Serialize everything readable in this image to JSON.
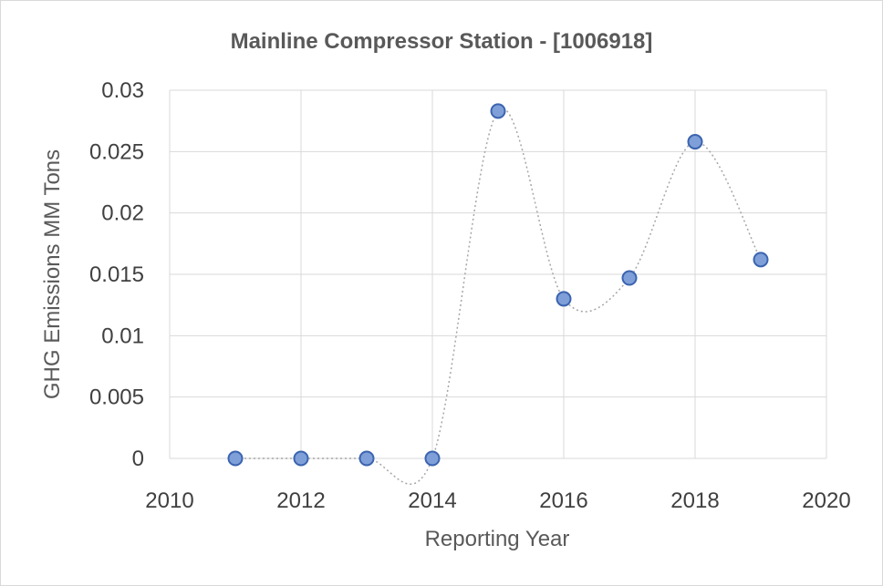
{
  "chart_data": {
    "type": "scatter",
    "title": "Mainline Compressor Station - [1006918]",
    "xlabel": "Reporting Year",
    "ylabel": "GHG Emissions MM Tons",
    "xlim": [
      2010,
      2020
    ],
    "ylim": [
      0,
      0.03
    ],
    "x_ticks": [
      "2010",
      "2012",
      "2014",
      "2016",
      "2018",
      "2020"
    ],
    "y_ticks": [
      "0",
      "0.005",
      "0.01",
      "0.015",
      "0.02",
      "0.025",
      "0.03"
    ],
    "grid": true,
    "smoothed_line": true,
    "series": [
      {
        "x": [
          2011,
          2012,
          2013,
          2014,
          2015,
          2016,
          2017,
          2018,
          2019
        ],
        "y": [
          0,
          0,
          0,
          0,
          0.0283,
          0.013,
          0.0147,
          0.0258,
          0.0162
        ]
      }
    ],
    "colors": {
      "marker_fill": "#7f9fd8",
      "marker_stroke": "#3b64b0",
      "line": "#a6a6a6"
    }
  }
}
